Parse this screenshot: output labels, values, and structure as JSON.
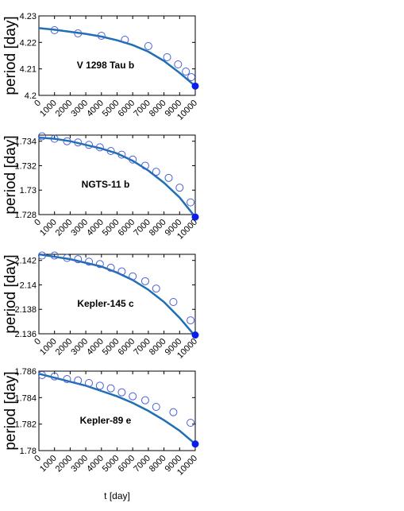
{
  "chart_data": [
    {
      "type": "scatter",
      "title": "V 1298 Tau b",
      "ylabel": "period [day]",
      "x": [
        1000,
        2500,
        4000,
        5500,
        7000,
        8200,
        8900,
        9400,
        9750
      ],
      "values": [
        4.2246,
        4.2234,
        4.2225,
        4.221,
        4.2186,
        4.2144,
        4.2117,
        4.209,
        4.2069
      ],
      "fit": {
        "x": [
          0,
          1000,
          2000,
          3000,
          4000,
          5000,
          6000,
          7000,
          8000,
          9000,
          10000
        ],
        "values": [
          4.2254,
          4.2248,
          4.224,
          4.2232,
          4.2222,
          4.2208,
          4.219,
          4.2165,
          4.213,
          4.2085,
          4.2035
        ]
      },
      "final": {
        "x": 10000,
        "value": 4.2035
      },
      "xlim": [
        0,
        10000
      ],
      "xticks": [
        0,
        1000,
        2000,
        3000,
        4000,
        5000,
        6000,
        7000,
        8000,
        9000,
        10000
      ],
      "ylim": [
        4.2,
        4.23
      ],
      "yticks": [
        4.2,
        4.21,
        4.22,
        4.23
      ],
      "marker_color": "#4a5fd8",
      "line_color": "#1f6fb4",
      "final_color": "#0a1ee8"
    },
    {
      "type": "scatter",
      "title": "NGTS-11 b",
      "ylabel": "period [day]",
      "x": [
        200,
        1000,
        1800,
        2500,
        3200,
        3900,
        4600,
        5300,
        6000,
        6800,
        7500,
        8300,
        9000,
        9700
      ],
      "values": [
        1.7344,
        1.7342,
        1.734,
        1.7339,
        1.7337,
        1.7335,
        1.7332,
        1.7329,
        1.7325,
        1.732,
        1.7315,
        1.731,
        1.7302,
        1.729
      ],
      "fit": {
        "x": [
          0,
          1000,
          2000,
          3000,
          4000,
          5000,
          6000,
          7000,
          8000,
          9000,
          10000
        ],
        "values": [
          1.7343,
          1.7342,
          1.734,
          1.7337,
          1.7334,
          1.733,
          1.7324,
          1.7316,
          1.7306,
          1.7294,
          1.7278
        ]
      },
      "final": {
        "x": 10000,
        "value": 1.7278
      },
      "xlim": [
        0,
        10000
      ],
      "xticks": [
        0,
        1000,
        2000,
        3000,
        4000,
        5000,
        6000,
        7000,
        8000,
        9000,
        10000
      ],
      "ylim": [
        1.728,
        1.7345
      ],
      "yticks": [
        1.728,
        1.73,
        1.732,
        1.734
      ],
      "marker_color": "#4a5fd8",
      "line_color": "#1f6fb4",
      "final_color": "#0a1ee8"
    },
    {
      "type": "scatter",
      "title": "Kepler-145 c",
      "ylabel": "period [day]",
      "x": [
        200,
        1000,
        1800,
        2500,
        3200,
        3900,
        4600,
        5300,
        6000,
        6800,
        7500,
        8600,
        9700
      ],
      "values": [
        2.1424,
        2.1424,
        2.1422,
        2.1421,
        2.1419,
        2.1417,
        2.1414,
        2.1411,
        2.1407,
        2.1403,
        2.1397,
        2.1386,
        2.1371
      ],
      "fit": {
        "x": [
          0,
          1000,
          2000,
          3000,
          4000,
          5000,
          6000,
          7000,
          8000,
          9000,
          10000
        ],
        "values": [
          2.1425,
          2.1423,
          2.1421,
          2.1418,
          2.1415,
          2.141,
          2.1404,
          2.1396,
          2.1386,
          2.1373,
          2.1358
        ]
      },
      "final": {
        "x": 10000,
        "value": 2.1359
      },
      "xlim": [
        0,
        10000
      ],
      "xticks": [
        0,
        1000,
        2000,
        3000,
        4000,
        5000,
        6000,
        7000,
        8000,
        9000,
        10000
      ],
      "ylim": [
        2.136,
        2.1425
      ],
      "yticks": [
        2.136,
        2.138,
        2.14,
        2.142
      ],
      "marker_color": "#4a5fd8",
      "line_color": "#1f6fb4",
      "final_color": "#0a1ee8"
    },
    {
      "type": "scatter",
      "title": "Kepler-89 e",
      "ylabel": "period [day]",
      "xlabel": "t [day]",
      "x": [
        200,
        1000,
        1800,
        2500,
        3200,
        3900,
        4600,
        5300,
        6000,
        6800,
        7500,
        8600,
        9700
      ],
      "values": [
        1.7857,
        1.7856,
        1.7854,
        1.7853,
        1.7851,
        1.7849,
        1.7847,
        1.7844,
        1.7841,
        1.7838,
        1.7833,
        1.7829,
        1.7821
      ],
      "fit": {
        "x": [
          0,
          1000,
          2000,
          3000,
          4000,
          5000,
          6000,
          7000,
          8000,
          9000,
          10000
        ],
        "values": [
          1.7858,
          1.7855,
          1.7852,
          1.7849,
          1.7845,
          1.7841,
          1.7836,
          1.783,
          1.7823,
          1.7815,
          1.7805
        ]
      },
      "final": {
        "x": 10000,
        "value": 1.7805
      },
      "xlim": [
        0,
        10000
      ],
      "xticks": [
        0,
        1000,
        2000,
        3000,
        4000,
        5000,
        6000,
        7000,
        8000,
        9000,
        10000
      ],
      "ylim": [
        1.78,
        1.786
      ],
      "yticks": [
        1.78,
        1.782,
        1.784,
        1.786
      ],
      "marker_color": "#4a5fd8",
      "line_color": "#1f6fb4",
      "final_color": "#0a1ee8"
    }
  ]
}
